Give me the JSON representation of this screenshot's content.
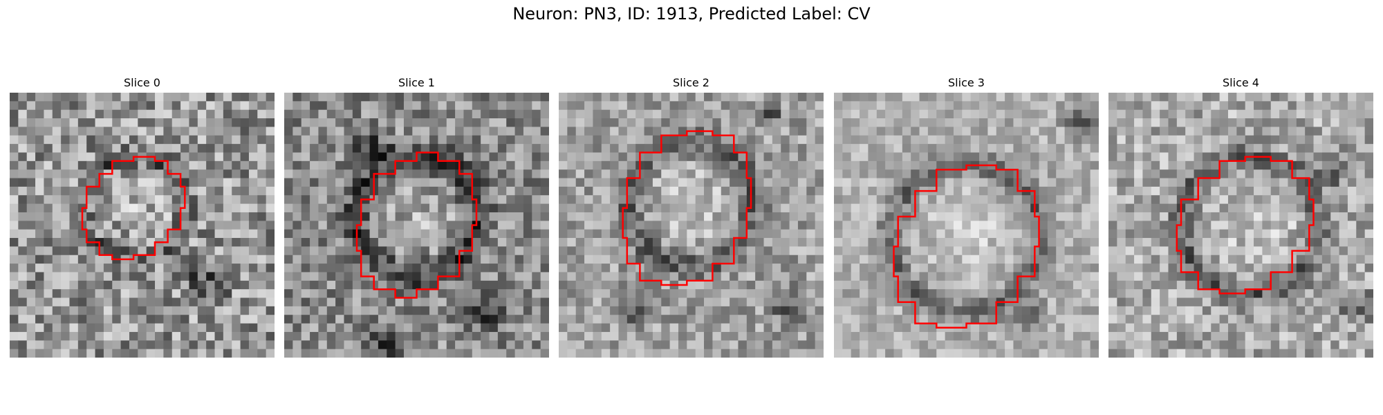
{
  "figure": {
    "title": "Neuron: PN3, ID: 1913, Predicted Label: CV"
  },
  "panels": [
    {
      "title": "Slice 0"
    },
    {
      "title": "Slice 1"
    },
    {
      "title": "Slice 2"
    },
    {
      "title": "Slice 3"
    },
    {
      "title": "Slice 4"
    }
  ],
  "colors": {
    "contour": "#ff0000",
    "background": "#ffffff"
  }
}
